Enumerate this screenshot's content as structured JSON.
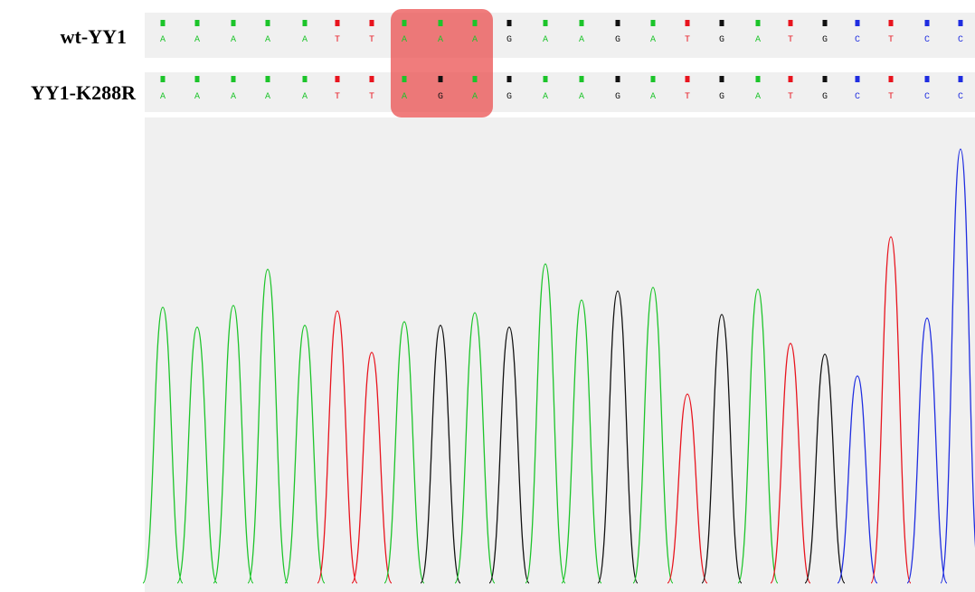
{
  "tracks": [
    {
      "label": "wt-YY1",
      "bases": [
        "A",
        "A",
        "A",
        "A",
        "A",
        "T",
        "T",
        "A",
        "A",
        "A",
        "G",
        "A",
        "A",
        "G",
        "A",
        "T",
        "G",
        "A",
        "T",
        "G",
        "C",
        "T",
        "C",
        "C"
      ]
    },
    {
      "label": "YY1-K288R",
      "bases": [
        "A",
        "A",
        "A",
        "A",
        "A",
        "T",
        "T",
        "A",
        "G",
        "A",
        "G",
        "A",
        "A",
        "G",
        "A",
        "T",
        "G",
        "A",
        "T",
        "G",
        "C",
        "T",
        "C",
        "C"
      ]
    }
  ],
  "base_colors": {
    "A": "#1cc42a",
    "T": "#e8141e",
    "G": "#111111",
    "C": "#1f2de0"
  }
}
